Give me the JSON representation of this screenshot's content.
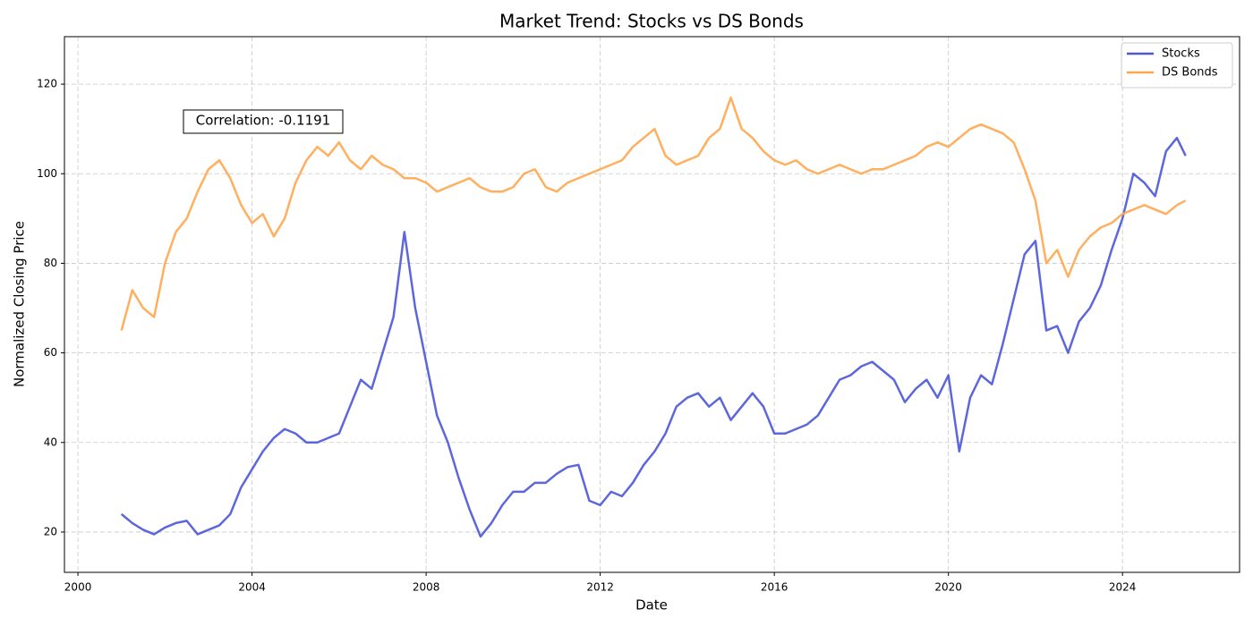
{
  "chart_data": {
    "type": "line",
    "title": "Market Trend: Stocks vs DS Bonds",
    "xlabel": "Date",
    "ylabel": "Normalized Closing Price",
    "annotation": "Correlation: -0.1191",
    "x": [
      2001,
      2001.25,
      2001.5,
      2001.75,
      2002,
      2002.25,
      2002.5,
      2002.75,
      2003,
      2003.25,
      2003.5,
      2003.75,
      2004,
      2004.25,
      2004.5,
      2004.75,
      2005,
      2005.25,
      2005.5,
      2005.75,
      2006,
      2006.25,
      2006.5,
      2006.75,
      2007,
      2007.25,
      2007.5,
      2007.75,
      2008,
      2008.25,
      2008.5,
      2008.75,
      2009,
      2009.25,
      2009.5,
      2009.75,
      2010,
      2010.25,
      2010.5,
      2010.75,
      2011,
      2011.25,
      2011.5,
      2011.75,
      2012,
      2012.25,
      2012.5,
      2012.75,
      2013,
      2013.25,
      2013.5,
      2013.75,
      2014,
      2014.25,
      2014.5,
      2014.75,
      2015,
      2015.25,
      2015.5,
      2015.75,
      2016,
      2016.25,
      2016.5,
      2016.75,
      2017,
      2017.25,
      2017.5,
      2017.75,
      2018,
      2018.25,
      2018.5,
      2018.75,
      2019,
      2019.25,
      2019.5,
      2019.75,
      2020,
      2020.25,
      2020.5,
      2020.75,
      2021,
      2021.25,
      2021.5,
      2021.75,
      2022,
      2022.25,
      2022.5,
      2022.75,
      2023,
      2023.25,
      2023.5,
      2023.75,
      2024,
      2024.25,
      2024.5,
      2024.75,
      2025,
      2025.25,
      2025.45
    ],
    "series": [
      {
        "name": "Stocks",
        "color": "#4b56d8",
        "values": [
          24,
          22,
          20.5,
          19.5,
          21,
          22,
          22.5,
          19.5,
          20.5,
          21.5,
          24,
          30,
          34,
          38,
          41,
          43,
          42,
          40,
          40,
          41,
          42,
          48,
          54,
          52,
          60,
          68,
          87,
          70,
          58,
          46,
          40,
          32,
          25,
          19,
          22,
          26,
          29,
          29,
          31,
          31,
          33,
          34.5,
          35,
          27,
          26,
          29,
          28,
          31,
          35,
          38,
          42,
          48,
          50,
          51,
          48,
          50,
          45,
          48,
          51,
          48,
          42,
          42,
          43,
          44,
          46,
          50,
          54,
          55,
          57,
          58,
          56,
          54,
          49,
          52,
          54,
          50,
          55,
          38,
          50,
          55,
          53,
          62,
          72,
          82,
          85,
          65,
          66,
          60,
          67,
          70,
          75,
          83,
          90,
          100,
          98,
          95,
          105,
          108,
          104
        ]
      },
      {
        "name": "DS Bonds",
        "color": "#ffa64d",
        "values": [
          65,
          74,
          70,
          68,
          80,
          87,
          90,
          96,
          101,
          103,
          99,
          93,
          89,
          91,
          86,
          90,
          98,
          103,
          106,
          104,
          107,
          103,
          101,
          104,
          102,
          101,
          99,
          99,
          98,
          96,
          97,
          98,
          99,
          97,
          96,
          96,
          97,
          100,
          101,
          97,
          96,
          98,
          99,
          100,
          101,
          102,
          103,
          106,
          108,
          110,
          104,
          102,
          103,
          104,
          108,
          110,
          117,
          110,
          108,
          105,
          103,
          102,
          103,
          101,
          100,
          101,
          102,
          101,
          100,
          101,
          101,
          102,
          103,
          104,
          106,
          107,
          106,
          108,
          110,
          111,
          110,
          109,
          107,
          101,
          94,
          80,
          83,
          77,
          83,
          86,
          88,
          89,
          91,
          92,
          93,
          92,
          91,
          93,
          94
        ]
      }
    ],
    "xlim": [
      1999.69,
      2026.69
    ],
    "xticks": [
      2000,
      2004,
      2008,
      2012,
      2016,
      2020,
      2024
    ],
    "ylim": [
      11,
      130.6
    ],
    "yticks": [
      20,
      40,
      60,
      80,
      100,
      120
    ],
    "grid": true,
    "legend": "upper right"
  }
}
